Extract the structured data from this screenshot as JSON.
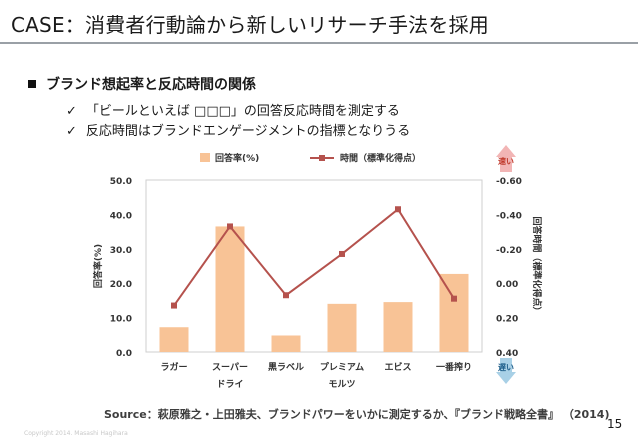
{
  "slide": {
    "title": "CASE：消費者行動論から新しいリサーチ手法を採用",
    "heading": "ブランド想起率と反応時間の関係",
    "bullets": [
      "「ビールといえば □□□」の回答反応時間を測定する",
      "反応時間はブランドエンゲージメントの指標となりうる"
    ],
    "source": "Source：萩原雅之・上田雅夫、ブランドパワーをいかに測定するか、『ブランド戦略全書』 （2014)",
    "page_number": "15",
    "copyright": "Copyright 2014. Masashi Hagihara"
  },
  "colors": {
    "bar": "#f8c396",
    "line": "#b5524d",
    "arrow_top": "#f2b5b5",
    "arrow_bottom": "#a8d0e6",
    "fast_text": "#c0392b",
    "slow_text": "#1f5f8b"
  },
  "chart_data": {
    "type": "bar",
    "categories": [
      "ラガー",
      "スーパードライ",
      "黒ラベル",
      "プレミアムモルツ",
      "エビス",
      "一番搾り"
    ],
    "category_label_lines": [
      [
        "ラガー"
      ],
      [
        "スーパー",
        "ドライ"
      ],
      [
        "黒ラベル"
      ],
      [
        "プレミアム",
        "モルツ"
      ],
      [
        "エビス"
      ],
      [
        "一番搾り"
      ]
    ],
    "series": [
      {
        "name": "回答率(%)",
        "type": "bar",
        "axis": "left",
        "values": [
          7.2,
          36.5,
          4.8,
          14.0,
          14.5,
          22.7
        ]
      },
      {
        "name": "時間（標準化得点）",
        "type": "line",
        "axis": "right",
        "values": [
          0.13,
          -0.33,
          0.07,
          -0.17,
          -0.43,
          0.09
        ]
      }
    ],
    "ylabel": "回答率(%)",
    "y2label": "回答時間（標準化得点）",
    "ylim": [
      0,
      50
    ],
    "y2lim": [
      -0.6,
      0.4
    ],
    "y2_reversed": true,
    "yticks": [
      "0.0",
      "10.0",
      "20.0",
      "30.0",
      "40.0",
      "50.0"
    ],
    "y2ticks": [
      "0.40",
      "0.20",
      "0.00",
      "-0.20",
      "-0.40",
      "-0.60"
    ],
    "fast_label": "速い",
    "slow_label": "遅い",
    "legend_position": "top",
    "grid": false
  }
}
